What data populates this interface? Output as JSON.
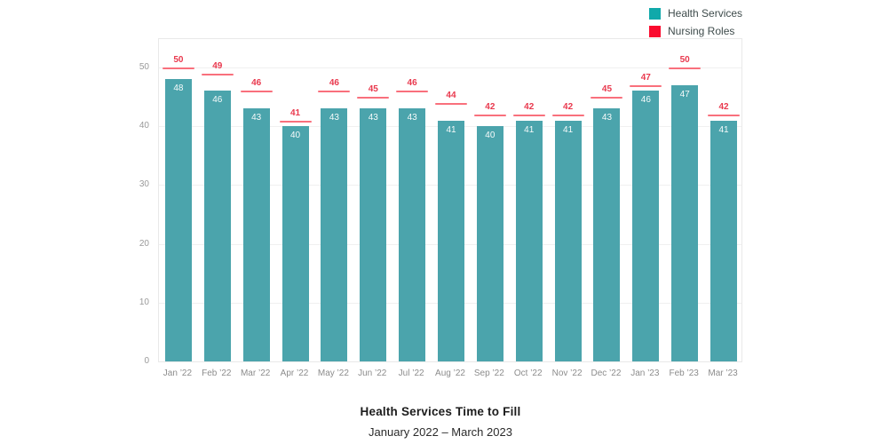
{
  "legend": {
    "items": [
      {
        "label": "Health Services",
        "color": "#10a9aa"
      },
      {
        "label": "Nursing Roles",
        "color": "#fa0a2e"
      }
    ]
  },
  "title": {
    "text": "Health Services Time to Fill",
    "subtitle": "January 2022 – March 2023"
  },
  "chart_data": {
    "type": "bar",
    "title": "Health Services Time to Fill",
    "subtitle": "January 2022 – March 2023",
    "xlabel": "",
    "ylabel": "",
    "categories": [
      "Jan ’22",
      "Feb ’22",
      "Mar ’22",
      "Apr ’22",
      "May ’22",
      "Jun ’22",
      "Jul ’22",
      "Aug ’22",
      "Sep ’22",
      "Oct ’22",
      "Nov ’22",
      "Dec ’22",
      "Jan ’23",
      "Feb ’23",
      "Mar ’23"
    ],
    "series": [
      {
        "name": "Health Services",
        "mark": "bar",
        "color": "#4ba4ac",
        "label_color": "#f7fbfb",
        "values": [
          48,
          46,
          43,
          40,
          43,
          43,
          43,
          41,
          40,
          41,
          41,
          43,
          46,
          47,
          41
        ]
      },
      {
        "name": "Nursing Roles",
        "mark": "tick-line",
        "color": "#f9707c",
        "label_color": "#e9394e",
        "values": [
          50,
          49,
          46,
          41,
          46,
          45,
          46,
          44,
          42,
          42,
          42,
          45,
          47,
          50,
          42
        ]
      }
    ],
    "ylim": [
      0,
      55
    ],
    "y_ticks": [
      0,
      10,
      20,
      30,
      40,
      50
    ],
    "grid": true,
    "legend_position": "top-right",
    "bar_value_labels": "inside-top",
    "marker_value_labels": "above-line"
  }
}
